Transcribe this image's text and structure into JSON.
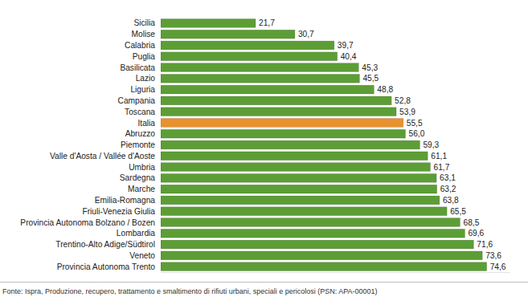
{
  "chart_data": {
    "type": "bar",
    "orientation": "horizontal",
    "categories": [
      "Sicilia",
      "Molise",
      "Calabria",
      "Puglia",
      "Basilicata",
      "Lazio",
      "Liguria",
      "Campania",
      "Toscana",
      "Italia",
      "Abruzzo",
      "Piemonte",
      "Valle d'Aosta / Vallée d'Aoste",
      "Umbria",
      "Sardegna",
      "Marche",
      "Emilia-Romagna",
      "Friuli-Venezia Giulia",
      "Provincia Autonoma Bolzano / Bozen",
      "Lombardia",
      "Trentino-Alto Adige/Südtirol",
      "Veneto",
      "Provincia Autonoma Trento"
    ],
    "values": [
      21.7,
      30.7,
      39.7,
      40.4,
      45.3,
      45.5,
      48.8,
      52.8,
      53.9,
      55.5,
      56.0,
      59.3,
      61.1,
      61.7,
      63.1,
      63.2,
      63.8,
      65.5,
      68.5,
      69.6,
      71.6,
      73.6,
      74.6
    ],
    "value_labels": [
      "21,7",
      "30,7",
      "39,7",
      "40,4",
      "45,3",
      "45,5",
      "48,8",
      "52,8",
      "53,9",
      "55,5",
      "56,0",
      "59,3",
      "61,1",
      "61,7",
      "63,1",
      "63,2",
      "63,8",
      "65,5",
      "68,5",
      "69,6",
      "71,6",
      "73,6",
      "74,6"
    ],
    "colors": [
      "#5c9e35",
      "#5c9e35",
      "#5c9e35",
      "#5c9e35",
      "#5c9e35",
      "#5c9e35",
      "#5c9e35",
      "#5c9e35",
      "#5c9e35",
      "#e8912e",
      "#5c9e35",
      "#5c9e35",
      "#5c9e35",
      "#5c9e35",
      "#5c9e35",
      "#5c9e35",
      "#5c9e35",
      "#5c9e35",
      "#5c9e35",
      "#5c9e35",
      "#5c9e35",
      "#5c9e35",
      "#5c9e35"
    ],
    "xlim": [
      0,
      80
    ],
    "tick_labels": "y",
    "grid": false,
    "data_labels": true,
    "source": "Fonte: Ispra, Produzione, recupero, trattamento e smaltimento di rifiuti urbani, speciali e pericolosi (PSN: APA-00001)"
  }
}
